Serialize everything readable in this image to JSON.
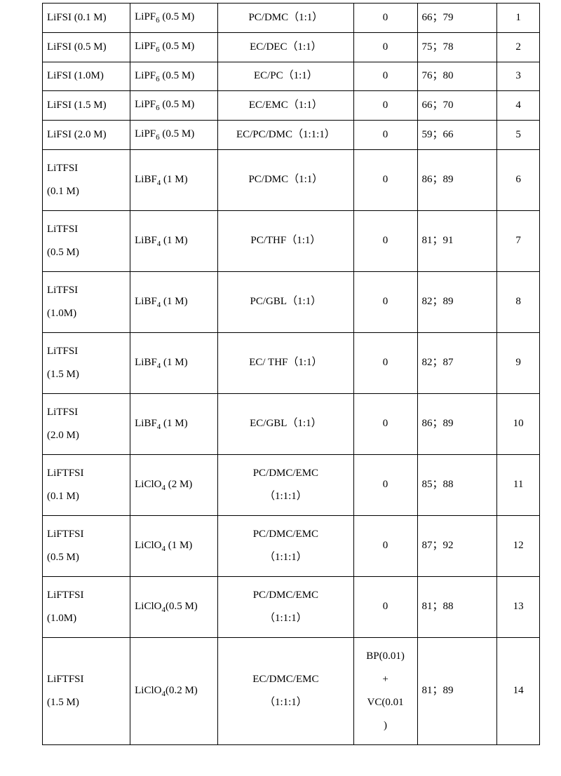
{
  "table": {
    "font_family": "Times New Roman, serif",
    "font_size_pt": 11,
    "border_color": "#000000",
    "background_color": "#ffffff",
    "column_widths_pct": [
      16.5,
      16.5,
      25.5,
      12,
      15,
      8
    ],
    "column_align": [
      "left",
      "left",
      "center",
      "center",
      "left",
      "center"
    ],
    "rows": [
      {
        "h": "short",
        "c1": "LiFSI (0.1 M)",
        "c2": "LiPF₆ (0.5 M)",
        "c3": "PC/DMC（1:1）",
        "c4": "0",
        "c5": "66；79",
        "c6": "1"
      },
      {
        "h": "short",
        "c1": "LiFSI (0.5 M)",
        "c2": "LiPF₆ (0.5 M)",
        "c3": "EC/DEC（1:1）",
        "c4": "0",
        "c5": "75；78",
        "c6": "2"
      },
      {
        "h": "short",
        "c1": "LiFSI (1.0M)",
        "c2": "LiPF₆ (0.5 M)",
        "c3": "EC/PC（1:1）",
        "c4": "0",
        "c5": "76；80",
        "c6": "3"
      },
      {
        "h": "short",
        "c1": "LiFSI (1.5 M)",
        "c2": "LiPF₆ (0.5 M)",
        "c3": "EC/EMC（1:1）",
        "c4": "0",
        "c5": "66；70",
        "c6": "4"
      },
      {
        "h": "short",
        "c1": "LiFSI (2.0 M)",
        "c2": "LiPF₆ (0.5 M)",
        "c3": "EC/PC/DMC（1:1:1）",
        "c4": "0",
        "c5": "59；66",
        "c6": "5"
      },
      {
        "h": "tall",
        "c1": "LiTFSI\n(0.1 M)",
        "c2": "LiBF₄ (1 M)",
        "c3": "PC/DMC（1:1）",
        "c4": "0",
        "c5": "86；89",
        "c6": "6"
      },
      {
        "h": "tall",
        "c1": "LiTFSI\n  (0.5 M)",
        "c2": "LiBF₄ (1 M)",
        "c3": "PC/THF（1:1）",
        "c4": "0",
        "c5": "81；91",
        "c6": "7"
      },
      {
        "h": "tall",
        "c1": "LiTFSI\n(1.0M)",
        "c2": "LiBF₄ (1 M)",
        "c3": "PC/GBL（1:1）",
        "c4": "0",
        "c5": "82；89",
        "c6": "8"
      },
      {
        "h": "tall",
        "c1": "LiTFSI\n(1.5 M)",
        "c2": "LiBF₄ (1 M)",
        "c3": "EC/ THF（1:1）",
        "c4": "0",
        "c5": "82；87",
        "c6": "9"
      },
      {
        "h": "tall",
        "c1": "LiTFSI\n(2.0 M)",
        "c2": "LiBF₄ (1 M)",
        "c3": "EC/GBL（1:1）",
        "c4": "0",
        "c5": "86；89",
        "c6": "10"
      },
      {
        "h": "tall",
        "c1": "LiFTFSI\n(0.1 M)",
        "c2": "LiClO₄ (2 M)",
        "c3": "PC/DMC/EMC\n（1:1:1）",
        "c4": "0",
        "c5": "85；88",
        "c6": "11"
      },
      {
        "h": "tall",
        "c1": "LiFTFSI\n(0.5 M)",
        "c2": "LiClO₄ (1 M)",
        "c3": "PC/DMC/EMC\n（1:1:1）",
        "c4": "0",
        "c5": "87；92",
        "c6": "12"
      },
      {
        "h": "tall",
        "c1": "LiFTFSI\n(1.0M)",
        "c2": "LiClO₄(0.5 M)",
        "c3": "PC/DMC/EMC\n（1:1:1）",
        "c4": "0",
        "c5": "81；88",
        "c6": "13"
      },
      {
        "h": "tall",
        "c1": "LiFTFSI\n(1.5 M)",
        "c2": "LiClO₄(0.2 M)",
        "c3": "EC/DMC/EMC\n（1:1:1）",
        "c4": "BP(0.01)\n+\nVC(0.01\n)",
        "c5": "81；89",
        "c6": "14"
      }
    ]
  }
}
